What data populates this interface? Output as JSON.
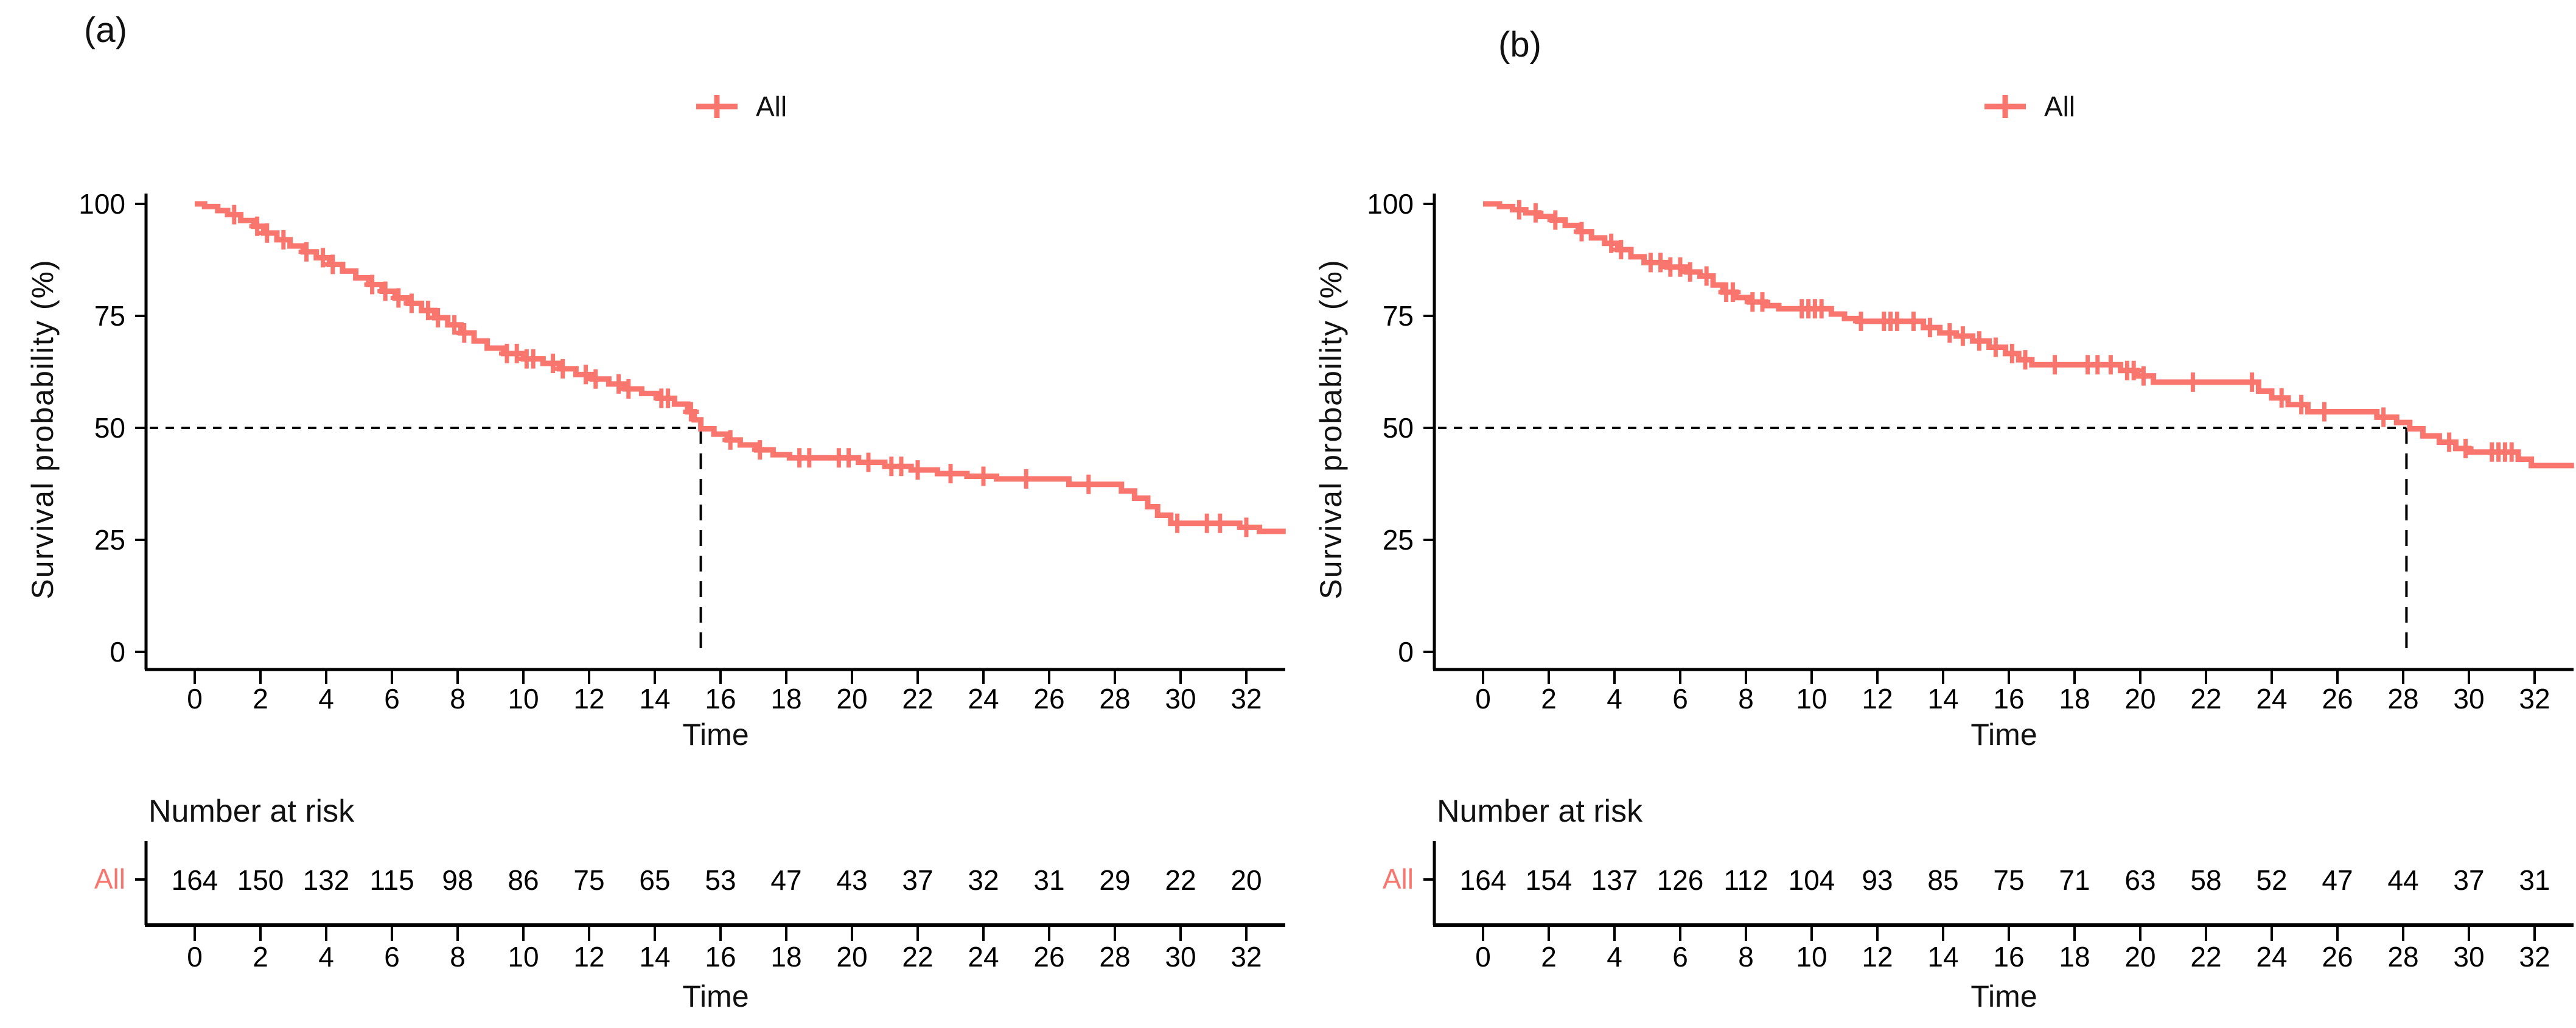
{
  "colors": {
    "accent": "#F8766D",
    "axis": "#000000",
    "text": "#000000"
  },
  "chart_data": [
    {
      "type": "line",
      "panel_label": "(a)",
      "legend_label": "All",
      "legend_position": "top",
      "ylabel": "Survival probability (%)",
      "xlabel": "Time",
      "xlim": [
        0,
        33.2
      ],
      "ylim": [
        0,
        100
      ],
      "xticks": [
        0,
        2,
        4,
        6,
        8,
        10,
        12,
        14,
        16,
        18,
        20,
        22,
        24,
        26,
        28,
        30,
        32
      ],
      "yticks": [
        0,
        25,
        50,
        75,
        100
      ],
      "median_time": 15.4,
      "median_survival_pct": 50,
      "steps": [
        [
          0,
          100
        ],
        [
          0.3,
          99.4
        ],
        [
          0.7,
          98.5
        ],
        [
          1.0,
          97.6
        ],
        [
          1.4,
          96.3
        ],
        [
          1.8,
          95.0
        ],
        [
          2.1,
          93.5
        ],
        [
          2.5,
          92.0
        ],
        [
          2.9,
          90.6
        ],
        [
          3.3,
          89.3
        ],
        [
          3.7,
          88.0
        ],
        [
          4.1,
          86.5
        ],
        [
          4.5,
          85.0
        ],
        [
          4.9,
          83.5
        ],
        [
          5.3,
          82.0
        ],
        [
          5.7,
          80.5
        ],
        [
          6.1,
          79.0
        ],
        [
          6.5,
          77.8
        ],
        [
          6.9,
          76.2
        ],
        [
          7.3,
          74.6
        ],
        [
          7.7,
          73.0
        ],
        [
          8.1,
          71.2
        ],
        [
          8.5,
          69.4
        ],
        [
          8.9,
          67.8
        ],
        [
          9.4,
          66.6
        ],
        [
          10.0,
          65.4
        ],
        [
          10.6,
          64.4
        ],
        [
          11.1,
          63.2
        ],
        [
          11.6,
          61.9
        ],
        [
          12.1,
          60.9
        ],
        [
          12.6,
          59.8
        ],
        [
          13.1,
          58.7
        ],
        [
          13.6,
          57.7
        ],
        [
          14.1,
          56.6
        ],
        [
          14.6,
          55.3
        ],
        [
          15.0,
          53.6
        ],
        [
          15.2,
          51.8
        ],
        [
          15.4,
          49.8
        ],
        [
          15.8,
          48.6
        ],
        [
          16.2,
          47.3
        ],
        [
          16.6,
          46.2
        ],
        [
          17.1,
          45.1
        ],
        [
          17.6,
          44.0
        ],
        [
          18.1,
          43.3
        ],
        [
          20.2,
          42.3
        ],
        [
          21.0,
          41.4
        ],
        [
          21.8,
          40.6
        ],
        [
          22.6,
          39.8
        ],
        [
          23.5,
          39.2
        ],
        [
          24.4,
          38.6
        ],
        [
          26.6,
          37.4
        ],
        [
          28.2,
          35.9
        ],
        [
          28.6,
          34.3
        ],
        [
          29.0,
          32.4
        ],
        [
          29.3,
          30.5
        ],
        [
          29.7,
          28.7
        ],
        [
          31.8,
          27.8
        ],
        [
          32.4,
          26.9
        ]
      ],
      "censor_times": [
        1.2,
        1.9,
        2.2,
        2.7,
        3.4,
        3.9,
        4.2,
        5.4,
        5.8,
        6.2,
        6.6,
        7.1,
        7.4,
        7.9,
        8.2,
        9.5,
        9.8,
        10.1,
        10.3,
        10.9,
        11.2,
        11.9,
        12.2,
        12.9,
        13.2,
        14.2,
        14.4,
        15.1,
        16.3,
        17.2,
        18.4,
        18.7,
        19.6,
        19.9,
        20.5,
        21.2,
        21.5,
        22.0,
        23.0,
        24.0,
        25.3,
        27.2,
        29.9,
        30.8,
        31.2,
        32.0
      ],
      "risk_table": {
        "title": "Number at risk",
        "row_label": "All",
        "times": [
          0,
          2,
          4,
          6,
          8,
          10,
          12,
          14,
          16,
          18,
          20,
          22,
          24,
          26,
          28,
          30,
          32
        ],
        "counts": [
          164,
          150,
          132,
          115,
          98,
          86,
          75,
          65,
          53,
          47,
          43,
          37,
          32,
          31,
          29,
          22,
          20
        ]
      }
    },
    {
      "type": "line",
      "panel_label": "(b)",
      "legend_label": "All",
      "legend_position": "top",
      "ylabel": "Survival probability (%)",
      "xlabel": "Time",
      "xlim": [
        0,
        33.2
      ],
      "ylim": [
        0,
        100
      ],
      "xticks": [
        0,
        2,
        4,
        6,
        8,
        10,
        12,
        14,
        16,
        18,
        20,
        22,
        24,
        26,
        28,
        30,
        32
      ],
      "yticks": [
        0,
        25,
        50,
        75,
        100
      ],
      "median_time": 28.1,
      "median_survival_pct": 50,
      "steps": [
        [
          0,
          100
        ],
        [
          0.5,
          99.4
        ],
        [
          0.9,
          98.7
        ],
        [
          1.3,
          98.0
        ],
        [
          1.7,
          97.2
        ],
        [
          2.1,
          96.4
        ],
        [
          2.5,
          95.2
        ],
        [
          2.9,
          93.8
        ],
        [
          3.3,
          92.4
        ],
        [
          3.7,
          91.2
        ],
        [
          4.1,
          89.8
        ],
        [
          4.5,
          88.2
        ],
        [
          4.9,
          86.9
        ],
        [
          5.6,
          85.9
        ],
        [
          6.2,
          84.8
        ],
        [
          6.6,
          83.9
        ],
        [
          7.0,
          81.9
        ],
        [
          7.3,
          80.3
        ],
        [
          7.7,
          79.1
        ],
        [
          8.1,
          78.1
        ],
        [
          8.6,
          77.3
        ],
        [
          9.0,
          76.6
        ],
        [
          10.6,
          75.4
        ],
        [
          11.0,
          74.4
        ],
        [
          11.4,
          73.8
        ],
        [
          13.4,
          72.4
        ],
        [
          13.9,
          71.2
        ],
        [
          14.4,
          70.5
        ],
        [
          14.9,
          69.4
        ],
        [
          15.4,
          68.0
        ],
        [
          15.9,
          66.6
        ],
        [
          16.3,
          65.2
        ],
        [
          16.7,
          64.1
        ],
        [
          19.4,
          62.8
        ],
        [
          19.9,
          61.6
        ],
        [
          20.4,
          60.2
        ],
        [
          23.6,
          58.2
        ],
        [
          24.0,
          56.7
        ],
        [
          24.5,
          55.2
        ],
        [
          25.1,
          53.6
        ],
        [
          27.2,
          52.4
        ],
        [
          27.8,
          51.2
        ],
        [
          28.2,
          49.8
        ],
        [
          28.6,
          48.2
        ],
        [
          29.1,
          46.8
        ],
        [
          29.6,
          45.4
        ],
        [
          30.0,
          44.6
        ],
        [
          31.5,
          43.0
        ],
        [
          31.9,
          41.6
        ]
      ],
      "censor_times": [
        1.1,
        1.6,
        2.2,
        3.0,
        3.9,
        4.2,
        5.1,
        5.4,
        5.7,
        6.0,
        6.3,
        6.8,
        7.4,
        7.6,
        8.2,
        8.5,
        9.7,
        9.9,
        10.1,
        10.3,
        11.5,
        12.2,
        12.4,
        12.6,
        13.1,
        13.6,
        14.2,
        14.6,
        15.1,
        15.6,
        16.1,
        16.5,
        17.4,
        18.4,
        18.7,
        19.1,
        19.6,
        19.8,
        20.1,
        21.6,
        23.4,
        24.3,
        24.9,
        25.6,
        27.4,
        29.4,
        29.9,
        30.7,
        30.9,
        31.1,
        31.3
      ],
      "risk_table": {
        "title": "Number at risk",
        "row_label": "All",
        "times": [
          0,
          2,
          4,
          6,
          8,
          10,
          12,
          14,
          16,
          18,
          20,
          22,
          24,
          26,
          28,
          30,
          32
        ],
        "counts": [
          164,
          154,
          137,
          126,
          112,
          104,
          93,
          85,
          75,
          71,
          63,
          58,
          52,
          47,
          44,
          37,
          31
        ]
      }
    }
  ]
}
